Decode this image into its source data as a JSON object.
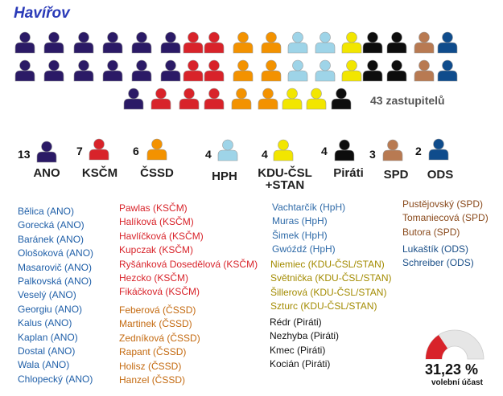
{
  "title": "Havířov",
  "total_label": "43 zastupitelů",
  "icon": "person-icon",
  "parties": [
    {
      "id": "ano",
      "num": "13",
      "name": "ANO",
      "color": "#2b1a66",
      "seats": 13,
      "text_color": "#1f5fa8",
      "members": [
        "Bělica (ANO)",
        "Gorecká (ANO)",
        "Baránek (ANO)",
        "Ološoková (ANO)",
        "Masarovič (ANO)",
        "Palkovská (ANO)",
        "Veselý (ANO)",
        "Georgiu (ANO)",
        "Kalus (ANO)",
        "Kaplan (ANO)",
        "Dostal (ANO)",
        "Wala (ANO)",
        "Chlopecký (ANO)"
      ]
    },
    {
      "id": "kscm",
      "num": "7",
      "name": "KSČM",
      "color": "#d8232a",
      "seats": 7,
      "text_color": "#d8232a",
      "members": [
        "Pawlas (KSČM)",
        "Halíková (KSČM)",
        "Havlíčková (KSČM)",
        "Kupczak (KSČM)",
        "Ryšánková Dosedělová (KSČM)",
        "Hezcko (KSČM)",
        "Fikáčková (KSČM)"
      ]
    },
    {
      "id": "cssd",
      "num": "6",
      "name": "ČSSD",
      "color": "#f39200",
      "seats": 6,
      "text_color": "#c46a10",
      "members": [
        "Feberová (ČSSD)",
        "Martinek (ČSSD)",
        "Zedníková (ČSSD)",
        "Rapant (ČSSD)",
        "Holisz (ČSSD)",
        "Hanzel (ČSSD)"
      ]
    },
    {
      "id": "hph",
      "num": "4",
      "name": "HPH",
      "color": "#9ed4e8",
      "seats": 4,
      "text_color": "#2e6aa8",
      "members": [
        "Vachtarčík (HpH)",
        "Muras (HpH)",
        "Šimek (HpH)",
        "Gwóźdź (HpH)"
      ]
    },
    {
      "id": "kdu",
      "num": "4",
      "name": "KDU-ČSL\n+STAN",
      "color": "#f2e600",
      "seats": 4,
      "text_color": "#a38b00",
      "members": [
        "Niemiec (KDU-ČSL/STAN)",
        "Světnička (KDU-ČSL/STAN)",
        "Šillerová (KDU-ČSL/STAN)",
        "Szturc (KDU-ČSL/STAN)"
      ]
    },
    {
      "id": "pirati",
      "num": "4",
      "name": "Piráti",
      "color": "#0d0d0d",
      "seats": 4,
      "text_color": "#111111",
      "members": [
        "Rédr (Piráti)",
        "Nezhyba (Piráti)",
        "Kmec (Piráti)",
        "Kocián (Piráti)"
      ]
    },
    {
      "id": "spd",
      "num": "3",
      "name": "SPD",
      "color": "#b87a52",
      "seats": 3,
      "text_color": "#8a4a1c",
      "members": [
        "Pustějovský (SPD)",
        "Tomaniecová (SPD)",
        "Butora (SPD)"
      ]
    },
    {
      "id": "ods",
      "num": "2",
      "name": "ODS",
      "color": "#0f4c8c",
      "seats": 2,
      "text_color": "#1a4f88",
      "members": [
        "Lukaštík (ODS)",
        "Schreiber (ODS)"
      ]
    }
  ],
  "turnout": {
    "value": "31,23 %",
    "label": "volební účast",
    "fraction": 0.3123,
    "fill_color": "#d8232a",
    "bg_color": "#e6e6e6"
  }
}
